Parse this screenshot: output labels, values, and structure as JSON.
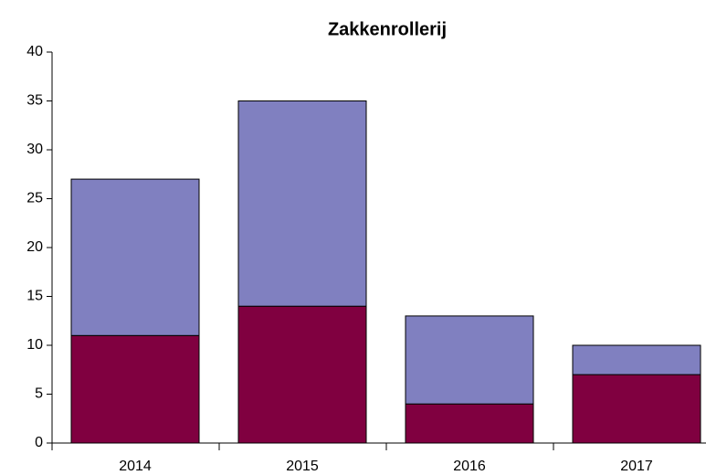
{
  "chart_data": {
    "type": "bar",
    "stacked": true,
    "title": "Zakkenrollerij",
    "categories": [
      "2014",
      "2015",
      "2016",
      "2017"
    ],
    "series": [
      {
        "color": "#800040",
        "values": [
          11,
          14,
          4,
          7
        ]
      },
      {
        "color": "#8080c0",
        "values": [
          16,
          21,
          9,
          3
        ]
      }
    ],
    "ylim": [
      0,
      40
    ],
    "yticks": [
      0,
      5,
      10,
      15,
      20,
      25,
      30,
      35,
      40
    ],
    "grid": false
  }
}
